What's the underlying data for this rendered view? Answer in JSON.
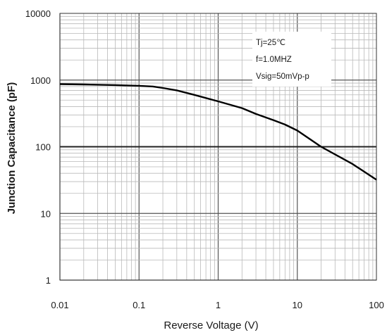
{
  "chart_data": {
    "type": "line",
    "title": "",
    "xlabel": "Reverse Voltage (V)",
    "ylabel": "Junction Capacitance (pF)",
    "xscale": "log",
    "yscale": "log",
    "xlim": [
      0.01,
      100
    ],
    "ylim": [
      1,
      10000
    ],
    "grid": true,
    "x_tick_labels": [
      "0.01",
      "0.1",
      "1",
      "10",
      "100"
    ],
    "y_tick_labels": [
      "1",
      "10",
      "100",
      "1000",
      "10000"
    ],
    "annotation": {
      "lines": [
        "Tj=25℃",
        "f=1.0MHZ",
        "Vsig=50mVp-p"
      ],
      "placement": "top-right"
    },
    "series": [
      {
        "color": "#000000",
        "x": [
          0.01,
          0.02,
          0.05,
          0.1,
          0.15,
          0.2,
          0.3,
          0.5,
          1,
          2,
          3,
          5,
          7,
          10,
          20,
          50,
          100
        ],
        "y": [
          870,
          860,
          840,
          820,
          800,
          760,
          700,
          600,
          480,
          380,
          310,
          250,
          215,
          175,
          100,
          55,
          32
        ]
      }
    ]
  }
}
